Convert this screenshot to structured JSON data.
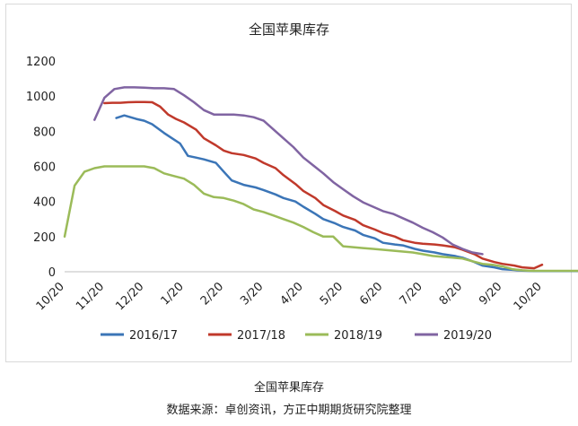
{
  "caption": {
    "title": "全国苹果库存",
    "source": "数据来源：卓创资讯，方正中期期货研究院整理"
  },
  "chart_data": {
    "type": "line",
    "title": "全国苹果库存",
    "xlabel": "",
    "ylabel": "",
    "ylim": [
      0,
      1200
    ],
    "yticks": [
      0,
      200,
      400,
      600,
      800,
      1000,
      1200
    ],
    "categories": [
      "10/20",
      "11/20",
      "12/20",
      "1/20",
      "2/20",
      "3/20",
      "4/20",
      "5/20",
      "6/20",
      "7/20",
      "8/20",
      "9/20",
      "10/20"
    ],
    "grid": false,
    "legend_position": "bottom",
    "series": [
      {
        "name": "2016/17",
        "color": "#3b75b7",
        "points": [
          [
            1.3,
            875
          ],
          [
            1.5,
            890
          ],
          [
            1.8,
            870
          ],
          [
            2.0,
            860
          ],
          [
            2.2,
            840
          ],
          [
            2.5,
            790
          ],
          [
            2.7,
            760
          ],
          [
            2.9,
            730
          ],
          [
            3.1,
            660
          ],
          [
            3.3,
            650
          ],
          [
            3.5,
            640
          ],
          [
            3.8,
            620
          ],
          [
            4.0,
            570
          ],
          [
            4.2,
            520
          ],
          [
            4.5,
            495
          ],
          [
            4.8,
            480
          ],
          [
            5.0,
            465
          ],
          [
            5.3,
            440
          ],
          [
            5.5,
            420
          ],
          [
            5.8,
            400
          ],
          [
            6.0,
            370
          ],
          [
            6.3,
            330
          ],
          [
            6.5,
            300
          ],
          [
            6.8,
            275
          ],
          [
            7.0,
            255
          ],
          [
            7.3,
            235
          ],
          [
            7.5,
            210
          ],
          [
            7.8,
            190
          ],
          [
            8.0,
            165
          ],
          [
            8.3,
            155
          ],
          [
            8.5,
            150
          ],
          [
            8.8,
            130
          ],
          [
            9.0,
            120
          ],
          [
            9.3,
            110
          ],
          [
            9.5,
            100
          ],
          [
            9.8,
            90
          ],
          [
            10.0,
            80
          ],
          [
            10.3,
            55
          ],
          [
            10.5,
            35
          ],
          [
            10.8,
            25
          ],
          [
            11.0,
            15
          ],
          [
            11.3,
            10
          ],
          [
            11.5,
            6
          ],
          [
            11.8,
            4
          ],
          [
            12.0,
            4
          ],
          [
            12.3,
            4
          ],
          [
            12.5,
            4
          ],
          [
            12.8,
            4
          ],
          [
            13.0,
            4
          ]
        ]
      },
      {
        "name": "2017/18",
        "color": "#c0392b",
        "points": [
          [
            1.0,
            960
          ],
          [
            1.2,
            962
          ],
          [
            1.4,
            962
          ],
          [
            1.6,
            965
          ],
          [
            1.8,
            966
          ],
          [
            2.0,
            966
          ],
          [
            2.2,
            965
          ],
          [
            2.4,
            940
          ],
          [
            2.6,
            895
          ],
          [
            2.8,
            870
          ],
          [
            3.0,
            850
          ],
          [
            3.3,
            810
          ],
          [
            3.5,
            760
          ],
          [
            3.8,
            720
          ],
          [
            4.0,
            690
          ],
          [
            4.2,
            675
          ],
          [
            4.5,
            665
          ],
          [
            4.8,
            645
          ],
          [
            5.0,
            620
          ],
          [
            5.3,
            590
          ],
          [
            5.5,
            550
          ],
          [
            5.8,
            500
          ],
          [
            6.0,
            460
          ],
          [
            6.3,
            420
          ],
          [
            6.5,
            380
          ],
          [
            6.8,
            345
          ],
          [
            7.0,
            320
          ],
          [
            7.3,
            295
          ],
          [
            7.5,
            265
          ],
          [
            7.8,
            240
          ],
          [
            8.0,
            220
          ],
          [
            8.3,
            200
          ],
          [
            8.5,
            180
          ],
          [
            8.8,
            165
          ],
          [
            9.0,
            160
          ],
          [
            9.3,
            155
          ],
          [
            9.5,
            150
          ],
          [
            9.8,
            140
          ],
          [
            10.0,
            125
          ],
          [
            10.3,
            100
          ],
          [
            10.5,
            75
          ],
          [
            10.8,
            55
          ],
          [
            11.0,
            45
          ],
          [
            11.3,
            35
          ],
          [
            11.5,
            25
          ],
          [
            11.8,
            20
          ],
          [
            12.0,
            40
          ]
        ]
      },
      {
        "name": "2018/19",
        "color": "#9bbb59",
        "points": [
          [
            0.0,
            200
          ],
          [
            0.25,
            490
          ],
          [
            0.5,
            570
          ],
          [
            0.75,
            590
          ],
          [
            1.0,
            600
          ],
          [
            1.5,
            600
          ],
          [
            2.0,
            600
          ],
          [
            2.25,
            590
          ],
          [
            2.5,
            560
          ],
          [
            2.75,
            545
          ],
          [
            3.0,
            530
          ],
          [
            3.25,
            495
          ],
          [
            3.5,
            445
          ],
          [
            3.75,
            425
          ],
          [
            4.0,
            420
          ],
          [
            4.25,
            405
          ],
          [
            4.5,
            385
          ],
          [
            4.75,
            355
          ],
          [
            5.0,
            340
          ],
          [
            5.25,
            320
          ],
          [
            5.5,
            300
          ],
          [
            5.75,
            280
          ],
          [
            6.0,
            255
          ],
          [
            6.25,
            225
          ],
          [
            6.5,
            200
          ],
          [
            6.75,
            200
          ],
          [
            7.0,
            145
          ],
          [
            7.25,
            140
          ],
          [
            7.5,
            135
          ],
          [
            7.75,
            130
          ],
          [
            8.0,
            125
          ],
          [
            8.25,
            120
          ],
          [
            8.5,
            115
          ],
          [
            8.75,
            110
          ],
          [
            9.0,
            100
          ],
          [
            9.25,
            90
          ],
          [
            9.5,
            85
          ],
          [
            9.75,
            80
          ],
          [
            10.0,
            75
          ],
          [
            10.25,
            60
          ],
          [
            10.5,
            45
          ],
          [
            10.75,
            40
          ],
          [
            11.0,
            30
          ],
          [
            11.25,
            15
          ],
          [
            11.5,
            8
          ],
          [
            11.75,
            5
          ],
          [
            12.0,
            5
          ],
          [
            12.25,
            5
          ],
          [
            12.5,
            5
          ],
          [
            12.75,
            5
          ],
          [
            13.0,
            5
          ]
        ]
      },
      {
        "name": "2019/20",
        "color": "#8064a2",
        "points": [
          [
            0.75,
            865
          ],
          [
            1.0,
            990
          ],
          [
            1.25,
            1040
          ],
          [
            1.5,
            1050
          ],
          [
            1.75,
            1050
          ],
          [
            2.0,
            1048
          ],
          [
            2.25,
            1045
          ],
          [
            2.5,
            1045
          ],
          [
            2.75,
            1040
          ],
          [
            3.0,
            1005
          ],
          [
            3.25,
            965
          ],
          [
            3.5,
            920
          ],
          [
            3.75,
            895
          ],
          [
            4.0,
            895
          ],
          [
            4.25,
            895
          ],
          [
            4.5,
            890
          ],
          [
            4.75,
            880
          ],
          [
            5.0,
            860
          ],
          [
            5.25,
            810
          ],
          [
            5.5,
            760
          ],
          [
            5.75,
            710
          ],
          [
            6.0,
            650
          ],
          [
            6.25,
            605
          ],
          [
            6.5,
            560
          ],
          [
            6.75,
            510
          ],
          [
            7.0,
            470
          ],
          [
            7.25,
            430
          ],
          [
            7.5,
            395
          ],
          [
            7.75,
            370
          ],
          [
            8.0,
            345
          ],
          [
            8.25,
            330
          ],
          [
            8.5,
            305
          ],
          [
            8.75,
            280
          ],
          [
            9.0,
            250
          ],
          [
            9.25,
            225
          ],
          [
            9.5,
            195
          ],
          [
            9.75,
            155
          ],
          [
            10.0,
            130
          ],
          [
            10.25,
            110
          ],
          [
            10.5,
            100
          ]
        ]
      }
    ]
  }
}
